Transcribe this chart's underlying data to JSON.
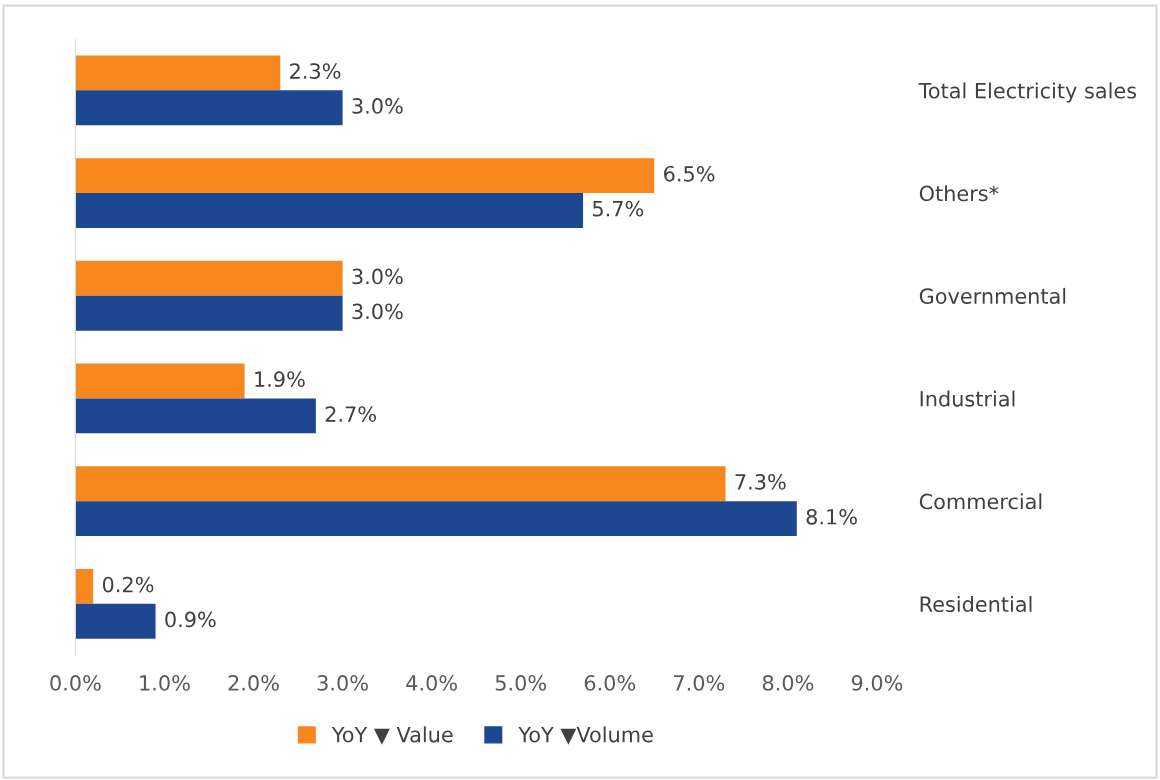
{
  "chart_data": {
    "type": "bar",
    "orientation": "horizontal",
    "categories": [
      "Total Electricity sales",
      "Others*",
      "Governmental",
      "Industrial",
      "Commercial",
      "Residential"
    ],
    "series": [
      {
        "name": "YoY ▼ Value",
        "color": "#f7871f",
        "values": [
          2.3,
          6.5,
          3.0,
          1.9,
          7.3,
          0.2
        ],
        "value_labels": [
          "2.3%",
          "6.5%",
          "3.0%",
          "1.9%",
          "7.3%",
          "0.2%"
        ]
      },
      {
        "name": "YoY ▼Volume",
        "color": "#1e4792",
        "values": [
          3.0,
          5.7,
          3.0,
          2.7,
          8.1,
          0.9
        ],
        "value_labels": [
          "3.0%",
          "5.7%",
          "3.0%",
          "2.7%",
          "8.1%",
          "0.9%"
        ]
      }
    ],
    "xlim": [
      0,
      9
    ],
    "xticks": [
      {
        "value": 0,
        "label": "0.0%"
      },
      {
        "value": 1,
        "label": "1.0%"
      },
      {
        "value": 2,
        "label": "2.0%"
      },
      {
        "value": 3,
        "label": "3.0%"
      },
      {
        "value": 4,
        "label": "4.0%"
      },
      {
        "value": 5,
        "label": "5.0%"
      },
      {
        "value": 6,
        "label": "6.0%"
      },
      {
        "value": 7,
        "label": "7.0%"
      },
      {
        "value": 8,
        "label": "8.0%"
      },
      {
        "value": 9,
        "label": "9.0%"
      }
    ],
    "grid": false,
    "legend": "bottom"
  }
}
